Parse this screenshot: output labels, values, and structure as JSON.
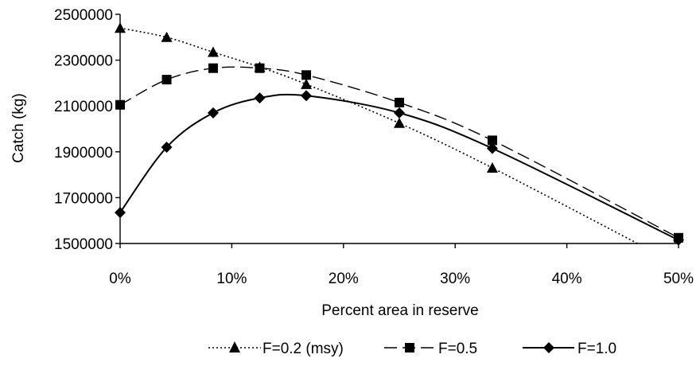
{
  "chart_data": {
    "type": "line",
    "xlabel": "Percent area in reserve",
    "ylabel": "Catch (kg)",
    "xlim": [
      0,
      50
    ],
    "ylim": [
      1500000,
      2500000
    ],
    "x_ticks": [
      0,
      10,
      20,
      30,
      40,
      50
    ],
    "x_tick_labels": [
      "0%",
      "10%",
      "20%",
      "30%",
      "40%",
      "50%"
    ],
    "y_ticks": [
      1500000,
      1700000,
      1900000,
      2100000,
      2300000,
      2500000
    ],
    "y_tick_labels": [
      "1500000",
      "1700000",
      "1900000",
      "2100000",
      "2300000",
      "2500000"
    ],
    "grid": false,
    "legend_position": "bottom",
    "series": [
      {
        "name": "F=0.2 (msy)",
        "marker": "triangle",
        "line_style": "dotted",
        "color": "#000000",
        "x": [
          0,
          4.17,
          8.33,
          12.5,
          16.67,
          25,
          33.33,
          47.5
        ],
        "y": [
          2440000,
          2400000,
          2335000,
          2270000,
          2195000,
          2025000,
          1830000,
          1470000
        ],
        "marker_count": 7
      },
      {
        "name": "F=0.5",
        "marker": "square",
        "line_style": "dashed",
        "color": "#000000",
        "x": [
          0,
          4.17,
          8.33,
          12.5,
          16.67,
          25,
          33.33,
          50
        ],
        "y": [
          2105000,
          2215000,
          2265000,
          2265000,
          2235000,
          2115000,
          1950000,
          1525000
        ],
        "marker_count": 8
      },
      {
        "name": "F=1.0",
        "marker": "diamond",
        "line_style": "solid",
        "color": "#000000",
        "x": [
          0,
          4.17,
          8.33,
          12.5,
          16.67,
          25,
          33.33,
          50
        ],
        "y": [
          1635000,
          1920000,
          2070000,
          2135000,
          2145000,
          2070000,
          1915000,
          1515000
        ],
        "marker_count": 8
      }
    ]
  }
}
